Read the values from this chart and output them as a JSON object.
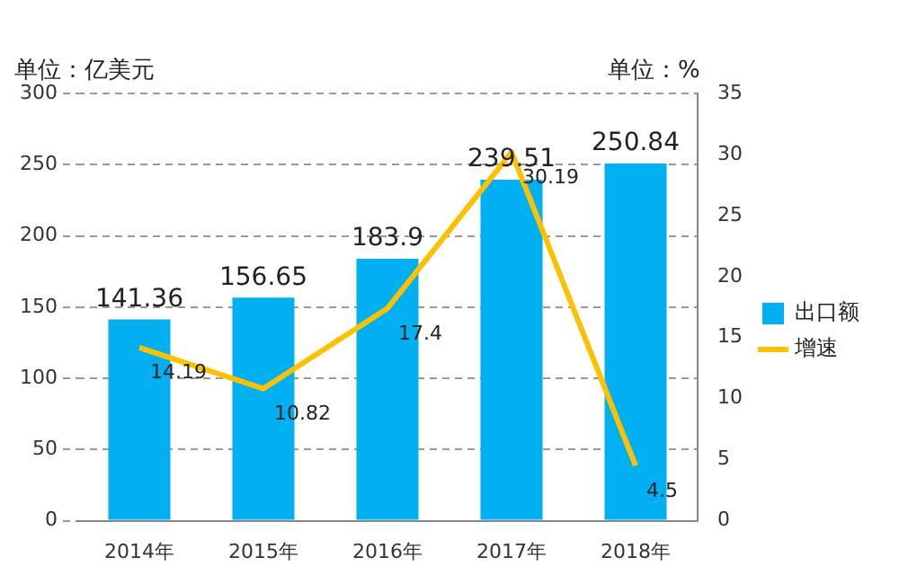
{
  "chart_data": {
    "type": "bar",
    "ylabel": "单位：亿美元",
    "y2label": "单位：%",
    "categories": [
      "2014年",
      "2015年",
      "2016年",
      "2017年",
      "2018年"
    ],
    "series": [
      {
        "name": "出口额",
        "color": "#00b0f0",
        "values": [
          141.36,
          156.65,
          183.9,
          239.51,
          250.84
        ]
      },
      {
        "name": "增速",
        "type": "line",
        "axis": "y2",
        "color": "#ffc000",
        "values": [
          14.19,
          10.82,
          17.4,
          30.19,
          4.5
        ]
      }
    ],
    "ylim": [
      0,
      300
    ],
    "yticks": [
      0,
      50,
      100,
      150,
      200,
      250,
      300
    ],
    "y2lim": [
      0,
      35
    ],
    "y2ticks": [
      0,
      5,
      10,
      15,
      20,
      25,
      30,
      35
    ],
    "grid": "y",
    "legend": "right",
    "data_labels": true,
    "marker": "none"
  }
}
